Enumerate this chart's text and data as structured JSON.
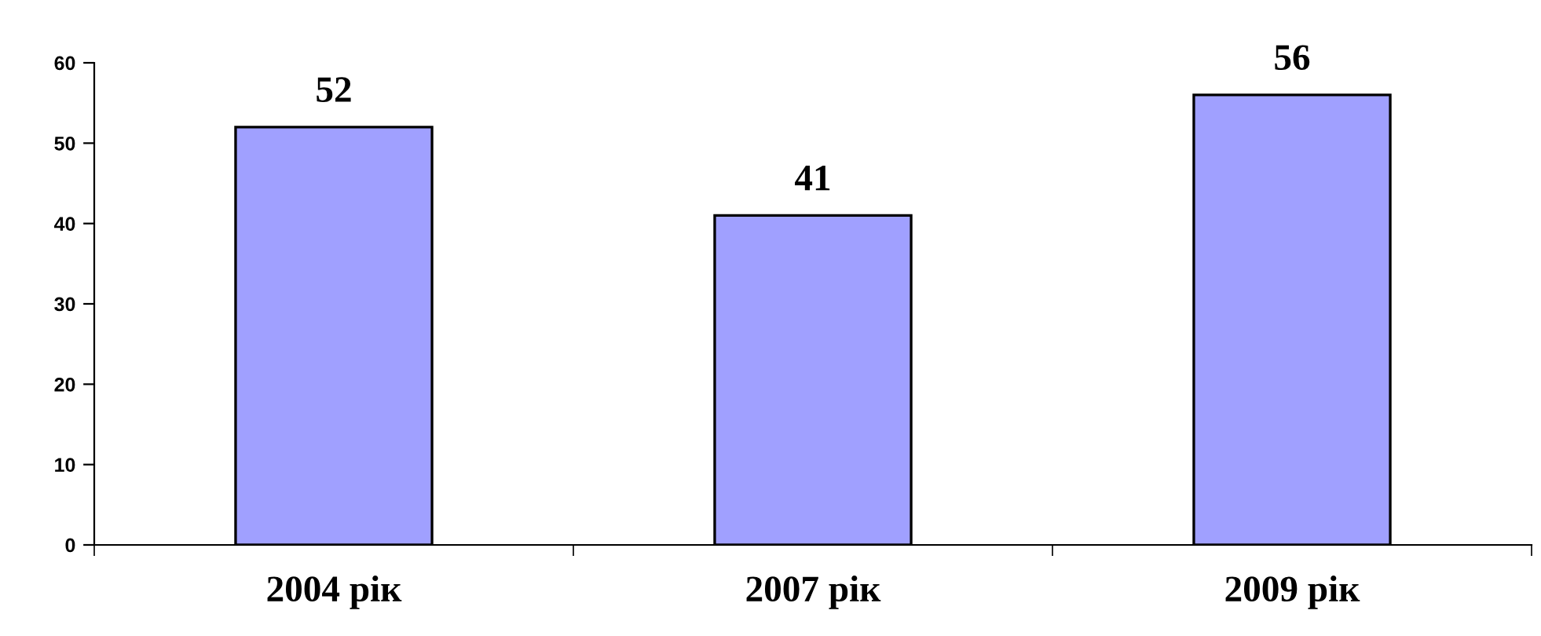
{
  "chart_data": {
    "type": "bar",
    "categories": [
      "2004 рік",
      "2007 рік",
      "2009 рік"
    ],
    "values": [
      52,
      41,
      56
    ],
    "color": "#a0a0ff",
    "ylim": [
      0,
      60
    ],
    "yticks": [
      0,
      10,
      20,
      30,
      40,
      50,
      60
    ],
    "grid": false,
    "legend": false,
    "data_labels": true
  }
}
